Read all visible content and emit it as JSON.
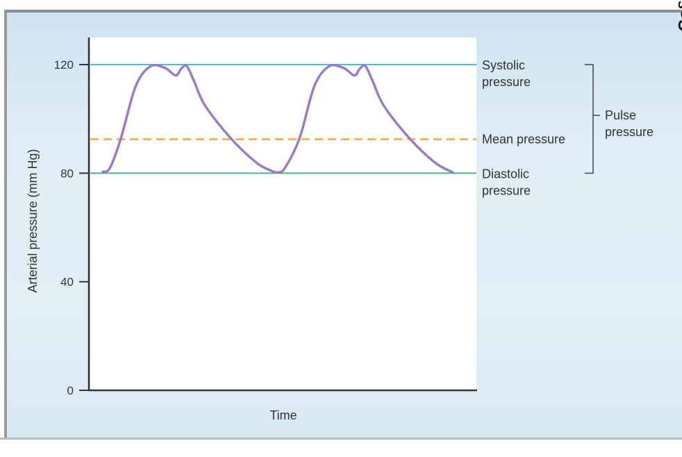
{
  "corner_text": "Co§",
  "chart_data": {
    "type": "line",
    "xlabel": "Time",
    "ylabel": "Arterial pressure (mm Hg)",
    "ylim": [
      0,
      128
    ],
    "yticks": [
      0,
      40,
      80,
      120
    ],
    "grid": false,
    "series": [
      {
        "name": "",
        "color": "#9a7bc8",
        "x": [
          0,
          0.02,
          0.05,
          0.09,
          0.13,
          0.17,
          0.2,
          0.215,
          0.23,
          0.25,
          0.28,
          0.35,
          0.42,
          0.46,
          0.48,
          0.5,
          0.54,
          0.58,
          0.62,
          0.66,
          0.69,
          0.705,
          0.72,
          0.74,
          0.77,
          0.84,
          0.91,
          0.96
        ],
        "values": [
          80.5,
          82,
          93,
          112,
          119.3,
          118.8,
          116,
          118.5,
          119.5,
          114,
          105,
          93,
          84,
          81,
          80.3,
          82,
          93,
          112,
          119.3,
          118.8,
          116,
          118.5,
          119.5,
          114,
          105,
          93,
          84,
          80.3
        ]
      }
    ],
    "reference_lines": [
      {
        "value": 120,
        "label": "Systolic pressure",
        "label_lines": [
          "Systolic",
          "pressure"
        ],
        "color": "#4bbcd0",
        "style": "solid"
      },
      {
        "value": 92.5,
        "label": "Mean pressure",
        "label_lines": [
          "Mean pressure"
        ],
        "color": "#f6b25c",
        "style": "dashed"
      },
      {
        "value": 80,
        "label": "Diastolic pressure",
        "label_lines": [
          "Diastolic",
          "pressure"
        ],
        "color": "#4fae8c",
        "style": "solid"
      }
    ],
    "annotations": [
      {
        "text": "Pulse pressure",
        "lines": [
          "Pulse",
          "pressure"
        ],
        "from": 80,
        "to": 120
      }
    ]
  }
}
